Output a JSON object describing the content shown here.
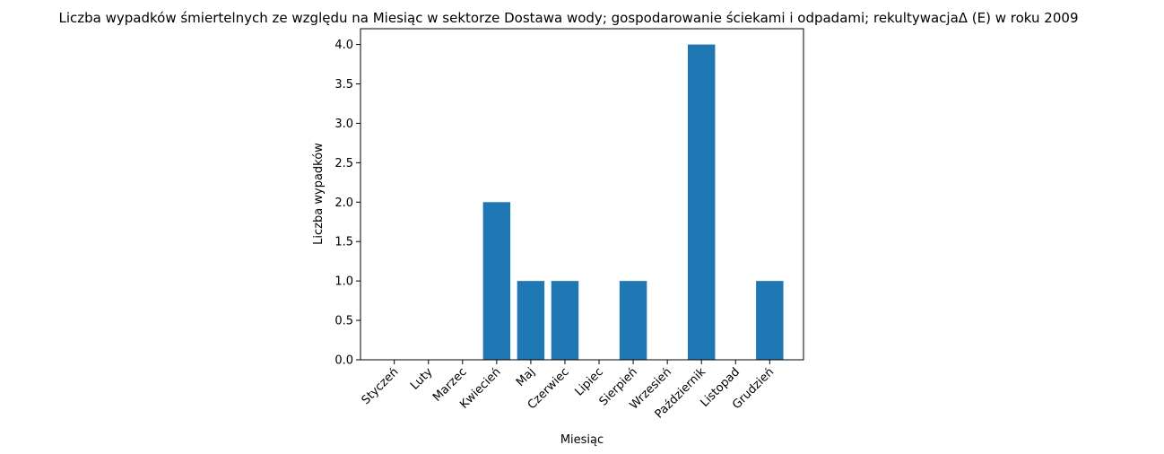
{
  "chart_data": {
    "type": "bar",
    "title": "Liczba wypadków śmiertelnych ze względu na Miesiąc w sektorze Dostawa wody; gospodarowanie ściekami i odpadami;  rekultywacjaΔ  (E) w roku 2009",
    "xlabel": "Miesiąc",
    "ylabel": "Liczba wypadków",
    "categories": [
      "Styczeń",
      "Luty",
      "Marzec",
      "Kwiecień",
      "Maj",
      "Czerwiec",
      "Lipiec",
      "Sierpień",
      "Wrzesień",
      "Październik",
      "Listopad",
      "Grudzień"
    ],
    "values": [
      0,
      0,
      0,
      2,
      1,
      1,
      0,
      1,
      0,
      4,
      0,
      1
    ],
    "ylim": [
      0,
      4.2
    ],
    "yticks": [
      "0.0",
      "0.5",
      "1.0",
      "1.5",
      "2.0",
      "2.5",
      "3.0",
      "3.5",
      "4.0"
    ],
    "grid": false,
    "bar_color": "#1f77b4"
  }
}
